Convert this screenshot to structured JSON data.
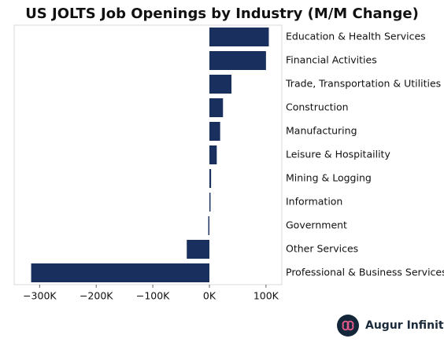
{
  "chart_data": {
    "type": "barh",
    "title": "US JOLTS Job Openings by Industry (M/M Change)",
    "categories": [
      "Education & Health Services",
      "Financial Activities",
      "Trade, Transportation & Utilities",
      "Construction",
      "Manufacturing",
      "Leisure & Hospitaility",
      "Mining & Logging",
      "Information",
      "Government",
      "Other Services",
      "Professional & Business Services"
    ],
    "values": [
      105000,
      100000,
      39000,
      24000,
      19000,
      13000,
      3000,
      2000,
      -2000,
      -40000,
      -315000
    ],
    "color": "#19305e",
    "xlim": [
      -345000,
      128000
    ],
    "xticks": [
      {
        "value": -300000,
        "label": "−300K"
      },
      {
        "value": -200000,
        "label": "−200K"
      },
      {
        "value": -100000,
        "label": "−100K"
      },
      {
        "value": 0,
        "label": "0K"
      },
      {
        "value": 100000,
        "label": "100K"
      }
    ],
    "grid": false,
    "brand": "Augur Infinity"
  }
}
